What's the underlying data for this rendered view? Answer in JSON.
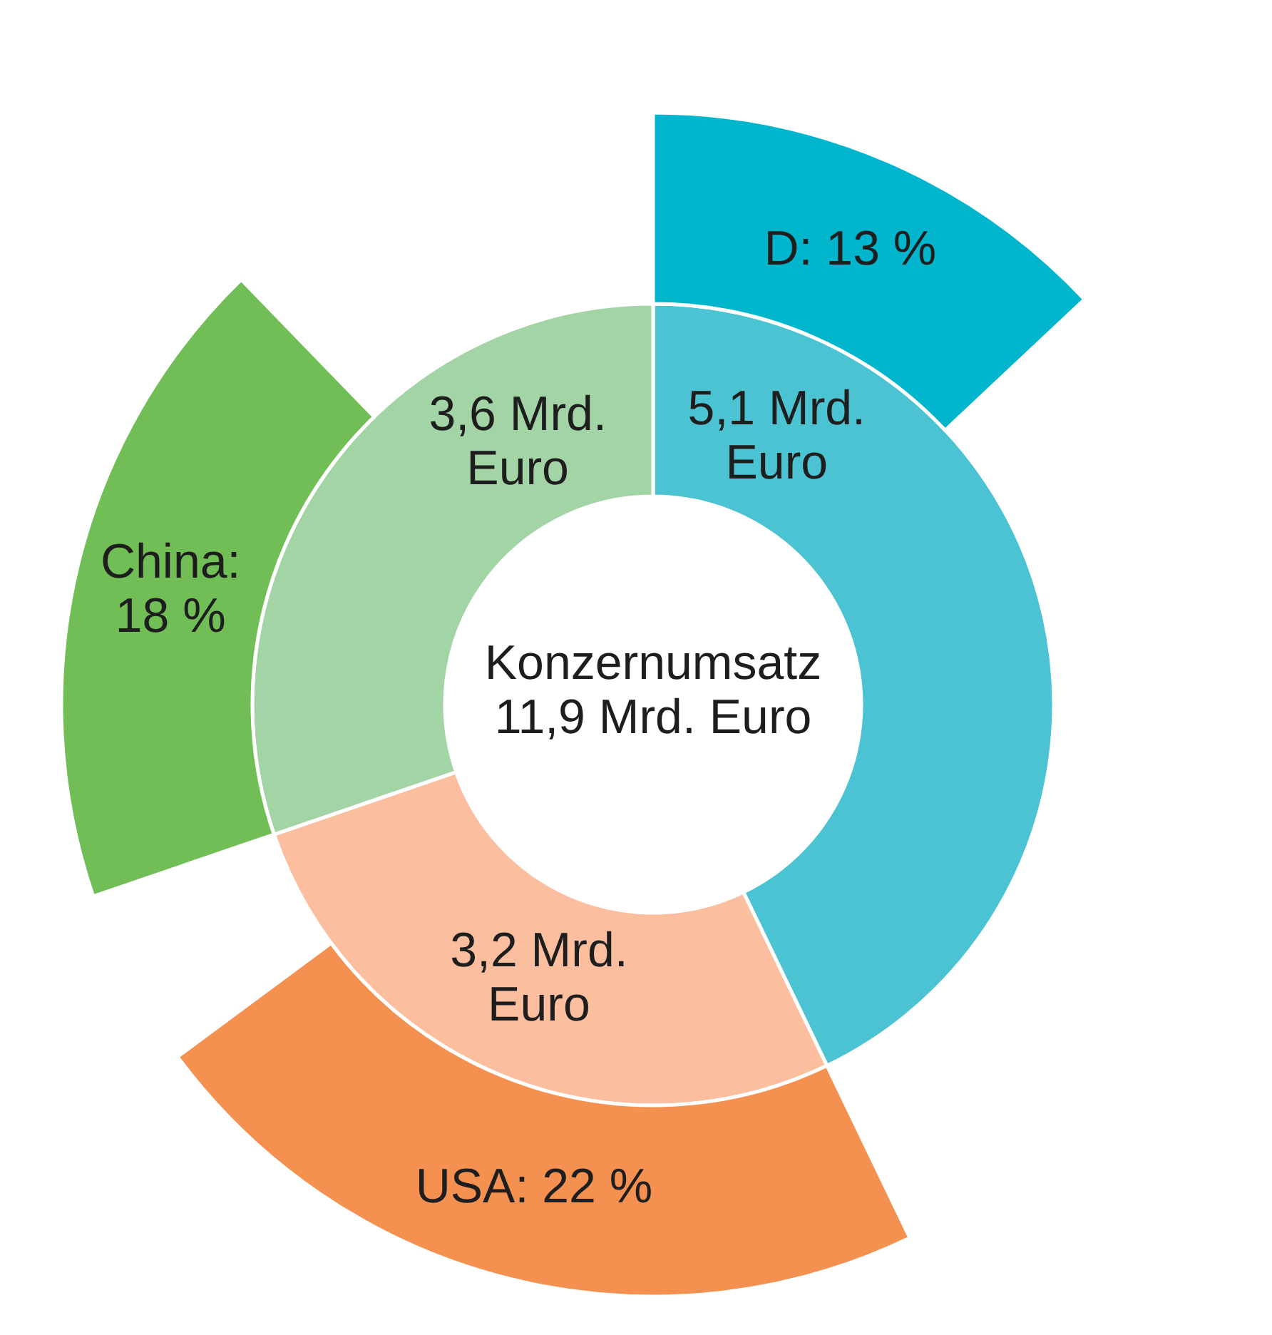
{
  "chart_data": {
    "type": "donut",
    "title": "Konzernumsatz 11,9 Mrd. Euro",
    "series": [
      {
        "values": [
          5.1,
          3.2,
          3.6
        ],
        "colors": [
          "#4bc3d3",
          "#fbbf9f",
          "#a3d4a5"
        ],
        "value_labels": [
          "5,1 Mrd. Euro",
          "3,2 Mrd. Euro",
          "3,6 Mrd. Euro"
        ]
      },
      {
        "values": [
          13,
          22,
          18
        ],
        "colors": [
          "#00b5cc",
          "#f59150",
          "#71be56"
        ],
        "value_labels": [
          "D: 13 %",
          "USA: 22 %",
          "China: 18 %"
        ]
      }
    ]
  }
}
